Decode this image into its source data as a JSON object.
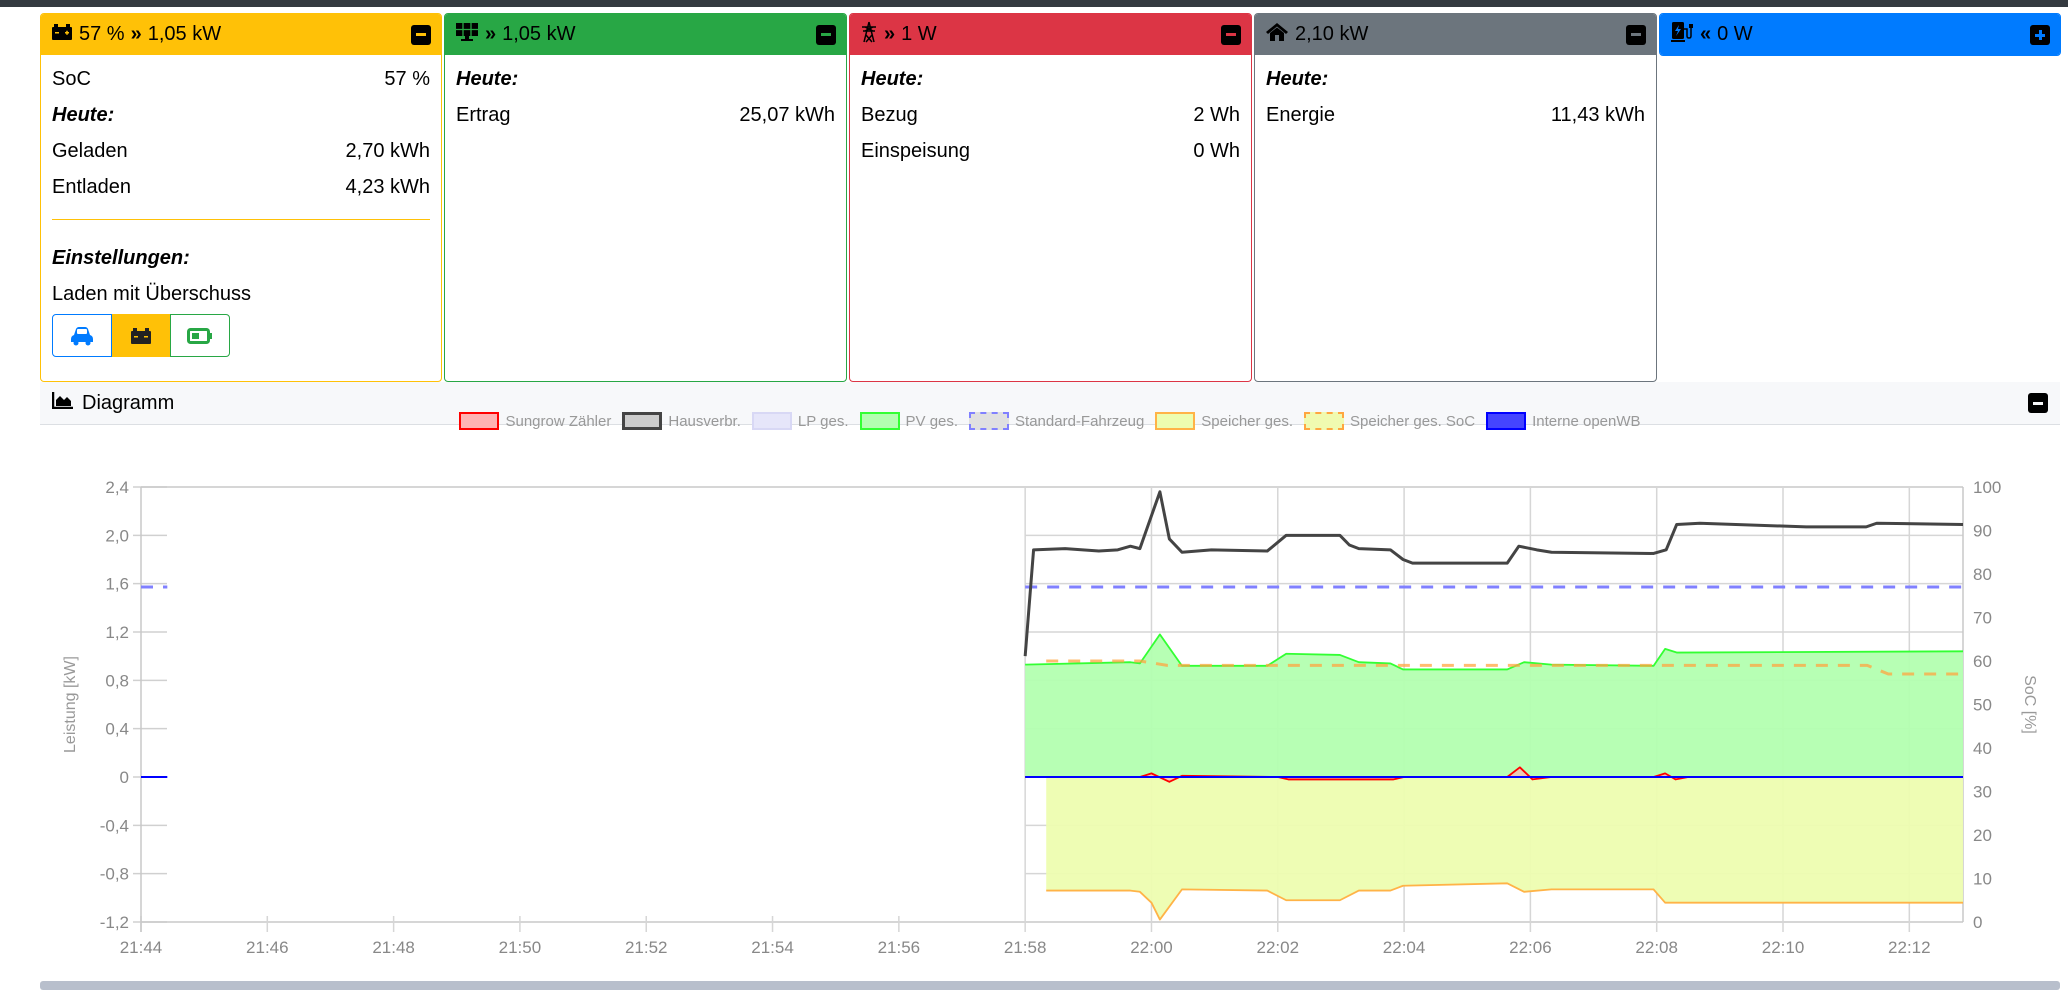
{
  "cards": [
    {
      "title_soc": "57 %",
      "title_power": "1,05 kW",
      "color": "#ffc107",
      "icon": "battery-icon",
      "dir_icon": "chevrons-right-icon",
      "rows": [
        {
          "label": "SoC",
          "value": "57 %"
        }
      ],
      "today_label": "Heute:",
      "today": [
        {
          "label": "Geladen",
          "value": "2,70 kWh"
        },
        {
          "label": "Entladen",
          "value": "4,23 kWh"
        }
      ],
      "settings_label": "Einstellungen:",
      "mode": "Laden mit Überschuss",
      "mode_buttons": [
        "car-icon",
        "car-battery-icon",
        "battery-half-icon"
      ]
    },
    {
      "title_power": "1,05 kW",
      "color": "#28a745",
      "icon": "solar-panel-icon",
      "dir_icon": "chevrons-right-icon",
      "today_label": "Heute:",
      "today": [
        {
          "label": "Ertrag",
          "value": "25,07 kWh"
        }
      ]
    },
    {
      "title_power": "1 W",
      "color": "#dc3545",
      "icon": "power-tower-icon",
      "dir_icon": "chevrons-right-icon",
      "today_label": "Heute:",
      "today": [
        {
          "label": "Bezug",
          "value": "2 Wh"
        },
        {
          "label": "Einspeisung",
          "value": "0 Wh"
        }
      ]
    },
    {
      "title_power": "2,10 kW",
      "color": "#6c757d",
      "icon": "home-icon",
      "today_label": "Heute:",
      "today": [
        {
          "label": "Energie",
          "value": "11,43 kWh"
        }
      ]
    },
    {
      "title_power": "0 W",
      "color": "#007bff",
      "icon": "charging-station-icon",
      "dir_icon": "chevrons-left-icon"
    }
  ],
  "diagram": {
    "title": "Diagramm",
    "icon": "chart-area-icon"
  },
  "chart_data": {
    "type": "line",
    "xlabel": "",
    "ylabel": "Leistung [kW]",
    "y2label": "SoC [%]",
    "xlim": [
      "21:44:00",
      "22:12:51"
    ],
    "xticks": [
      "21:44",
      "21:46",
      "21:48",
      "21:50",
      "21:52",
      "21:54",
      "21:56",
      "21:58",
      "22:00",
      "22:02",
      "22:04",
      "22:06",
      "22:08",
      "22:10",
      "22:12"
    ],
    "ylim": [
      -1.2,
      2.4
    ],
    "yticks": [
      "2,4",
      "2,0",
      "1,6",
      "1,2",
      "0,8",
      "0,4",
      "0",
      "-0,4",
      "-0,8",
      "-1,2"
    ],
    "y2lim": [
      0,
      100
    ],
    "y2ticks": [
      "100",
      "90",
      "80",
      "70",
      "60",
      "50",
      "40",
      "30",
      "20",
      "10",
      "0"
    ],
    "grid": true,
    "legend_position": "top",
    "series": [
      {
        "name": "Sungrow Zähler",
        "axis": "kW",
        "color": "#ff0000",
        "fill": "#ffb3b3",
        "area": true,
        "points": [
          [
            "21:58:00",
            0
          ],
          [
            "21:59:49",
            0
          ],
          [
            "22:00:00",
            0.03
          ],
          [
            "22:00:17",
            -0.04
          ],
          [
            "22:00:29",
            0.01
          ],
          [
            "22:02:00",
            0
          ],
          [
            "22:02:10",
            -0.02
          ],
          [
            "22:03:50",
            -0.02
          ],
          [
            "22:04:00",
            0
          ],
          [
            "22:05:38",
            0
          ],
          [
            "22:05:50",
            0.08
          ],
          [
            "22:06:02",
            -0.02
          ],
          [
            "22:06:20",
            0
          ],
          [
            "22:07:57",
            0
          ],
          [
            "22:08:08",
            0.03
          ],
          [
            "22:08:18",
            -0.02
          ],
          [
            "22:08:30",
            0
          ],
          [
            "22:12:51",
            0
          ]
        ]
      },
      {
        "name": "Hausverbr.",
        "axis": "kW",
        "color": "#444444",
        "fill": "#cccccc",
        "area": false,
        "width": 3,
        "points": [
          [
            "21:58:00",
            1.0
          ],
          [
            "21:58:08",
            1.88
          ],
          [
            "21:58:38",
            1.89
          ],
          [
            "21:59:10",
            1.87
          ],
          [
            "21:59:28",
            1.88
          ],
          [
            "21:59:40",
            1.91
          ],
          [
            "21:59:49",
            1.89
          ],
          [
            "22:00:08",
            2.36
          ],
          [
            "22:00:17",
            1.97
          ],
          [
            "22:00:29",
            1.86
          ],
          [
            "22:00:57",
            1.88
          ],
          [
            "22:01:50",
            1.87
          ],
          [
            "22:02:08",
            2.0
          ],
          [
            "22:02:59",
            2.0
          ],
          [
            "22:03:08",
            1.92
          ],
          [
            "22:03:17",
            1.89
          ],
          [
            "22:03:47",
            1.88
          ],
          [
            "22:03:59",
            1.8
          ],
          [
            "22:04:08",
            1.77
          ],
          [
            "22:05:38",
            1.77
          ],
          [
            "22:05:49",
            1.91
          ],
          [
            "22:06:06",
            1.88
          ],
          [
            "22:06:20",
            1.86
          ],
          [
            "22:07:57",
            1.85
          ],
          [
            "22:08:09",
            1.88
          ],
          [
            "22:08:19",
            2.09
          ],
          [
            "22:08:41",
            2.1
          ],
          [
            "22:10:22",
            2.07
          ],
          [
            "22:11:19",
            2.07
          ],
          [
            "22:11:29",
            2.1
          ],
          [
            "22:12:51",
            2.09
          ]
        ]
      },
      {
        "name": "LP ges.",
        "axis": "kW",
        "color": "#d8d8f5",
        "fill": "#e6e6fa",
        "area": false,
        "points": []
      },
      {
        "name": "PV ges.",
        "axis": "kW",
        "color": "#33ff33",
        "fill": "#b3ffb0",
        "area": true,
        "points": [
          [
            "21:58:00",
            0.93
          ],
          [
            "21:59:40",
            0.95
          ],
          [
            "21:59:49",
            0.94
          ],
          [
            "22:00:08",
            1.18
          ],
          [
            "22:00:29",
            0.92
          ],
          [
            "22:01:50",
            0.92
          ],
          [
            "22:02:08",
            1.02
          ],
          [
            "22:02:59",
            1.01
          ],
          [
            "22:03:17",
            0.95
          ],
          [
            "22:03:47",
            0.94
          ],
          [
            "22:03:59",
            0.89
          ],
          [
            "22:05:38",
            0.89
          ],
          [
            "22:05:54",
            0.95
          ],
          [
            "22:06:20",
            0.93
          ],
          [
            "22:07:57",
            0.92
          ],
          [
            "22:08:08",
            1.06
          ],
          [
            "22:08:19",
            1.03
          ],
          [
            "22:12:51",
            1.04
          ]
        ]
      },
      {
        "name": "Standard-Fahrzeug",
        "axis": "%",
        "color": "#8080ff",
        "fill": "#e0e0e0",
        "dashed": true,
        "area": false,
        "points": [
          [
            "21:44:00",
            77
          ],
          [
            "21:44:25",
            77
          ],
          null,
          [
            "21:58:00",
            77
          ],
          [
            "22:12:51",
            77
          ]
        ]
      },
      {
        "name": "Speicher ges.",
        "axis": "kW",
        "color": "#ffb347",
        "fill": "#edfdb0",
        "area": true,
        "points": [
          [
            "21:58:20",
            -0.94
          ],
          [
            "21:59:40",
            -0.94
          ],
          [
            "21:59:49",
            -0.95
          ],
          [
            "22:00:00",
            -1.04
          ],
          [
            "22:00:08",
            -1.18
          ],
          [
            "22:00:29",
            -0.93
          ],
          [
            "22:01:50",
            -0.94
          ],
          [
            "22:02:08",
            -1.02
          ],
          [
            "22:02:59",
            -1.02
          ],
          [
            "22:03:17",
            -0.94
          ],
          [
            "22:03:47",
            -0.94
          ],
          [
            "22:03:59",
            -0.9
          ],
          [
            "22:05:38",
            -0.88
          ],
          [
            "22:05:54",
            -0.95
          ],
          [
            "22:06:20",
            -0.93
          ],
          [
            "22:07:57",
            -0.93
          ],
          [
            "22:08:08",
            -1.04
          ],
          [
            "22:12:51",
            -1.04
          ]
        ]
      },
      {
        "name": "Speicher ges. SoC",
        "axis": "%",
        "color": "#ffa640",
        "fill": "#f0fab0",
        "dashed": true,
        "area": false,
        "points": [
          [
            "21:58:20",
            60
          ],
          [
            "21:59:49",
            60
          ],
          [
            "22:00:15",
            59
          ],
          [
            "22:11:20",
            59
          ],
          [
            "22:11:40",
            57
          ],
          [
            "22:12:51",
            57
          ]
        ]
      },
      {
        "name": "Interne openWB",
        "axis": "kW",
        "color": "#0000ff",
        "fill": "#4444ff",
        "area": false,
        "width": 2,
        "points": [
          [
            "21:44:00",
            0
          ],
          [
            "21:44:25",
            0
          ],
          null,
          [
            "21:58:00",
            0
          ],
          [
            "22:12:51",
            0
          ]
        ]
      }
    ]
  }
}
